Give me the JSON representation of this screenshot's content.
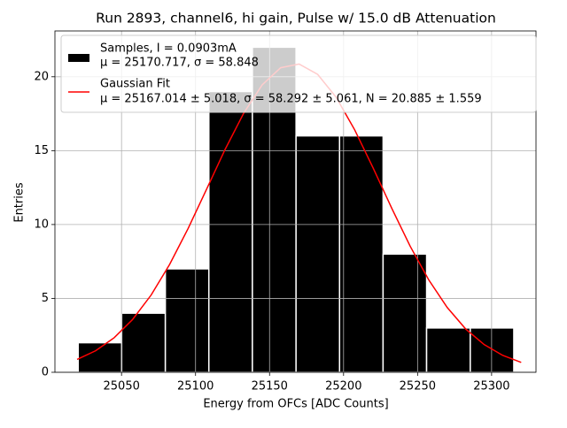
{
  "chart_data": {
    "type": "histogram",
    "title": "Run 2893, channel6, hi gain, Pulse w/ 15.0 dB Attenuation",
    "xlabel": "Energy from OFCs [ADC Counts]",
    "ylabel": "Entries",
    "bins": [
      25020.7,
      25050.1,
      25079.6,
      25109.0,
      25138.4,
      25167.9,
      25197.3,
      25226.7,
      25256.1,
      25285.6,
      25315.0
    ],
    "counts": [
      2,
      4,
      7,
      19,
      22,
      16,
      16,
      8,
      3,
      3
    ],
    "name": [
      "Samples, I = 0.0903mA",
      "μ = 25170.717, σ = 58.848"
    ],
    "color": "#000000",
    "edgecolor": "#ffffff",
    "fit": {
      "name": [
        "Gaussian Fit",
        "μ = 25167.014 ± 5.018, σ = 58.292 ± 5.061, N = 20.885 ± 1.559"
      ],
      "color": "#ff0000",
      "x": [
        25020,
        25032.5,
        25045,
        25057.5,
        25070,
        25082.5,
        25095,
        25107.5,
        25120,
        25132.5,
        25145,
        25157.5,
        25170,
        25182.5,
        25195,
        25207.5,
        25220,
        25232.5,
        25245,
        25257.5,
        25270,
        25282.5,
        25295,
        25307.5,
        25320
      ],
      "y": [
        0.869,
        1.458,
        2.337,
        3.575,
        5.228,
        7.301,
        9.737,
        12.4,
        15.09,
        17.53,
        19.45,
        20.61,
        20.86,
        20.16,
        18.61,
        16.41,
        13.82,
        11.11,
        8.53,
        6.26,
        4.39,
        2.93,
        1.875,
        1.145,
        0.667
      ]
    },
    "xlim": [
      25005,
      25330
    ],
    "ylim": [
      0,
      23.1
    ],
    "xticks": [
      25050,
      25100,
      25150,
      25200,
      25250,
      25300
    ],
    "yticks": [
      0,
      5,
      10,
      15,
      20
    ],
    "grid": true,
    "legend": "upper left"
  }
}
